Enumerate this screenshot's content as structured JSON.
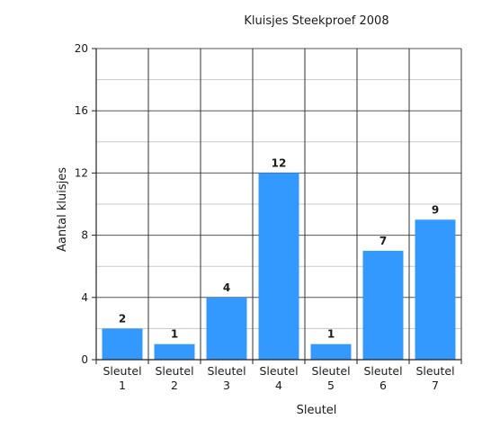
{
  "chart_data": {
    "type": "bar",
    "title": "Kluisjes Steekproef 2008",
    "xlabel": "Sleutel",
    "ylabel": "Aantal kluisjes",
    "categories": [
      [
        "Sleutel",
        "1"
      ],
      [
        "Sleutel",
        "2"
      ],
      [
        "Sleutel",
        "3"
      ],
      [
        "Sleutel",
        "4"
      ],
      [
        "Sleutel",
        "5"
      ],
      [
        "Sleutel",
        "6"
      ],
      [
        "Sleutel",
        "7"
      ]
    ],
    "values": [
      2,
      1,
      4,
      12,
      1,
      7,
      9
    ],
    "data_labels": [
      "2",
      "1",
      "4",
      "12",
      "1",
      "7",
      "9"
    ],
    "ylim": [
      0,
      20
    ],
    "yticks": [
      0,
      4,
      8,
      12,
      16,
      20
    ],
    "grid": true,
    "bar_color": "#3399ff"
  }
}
